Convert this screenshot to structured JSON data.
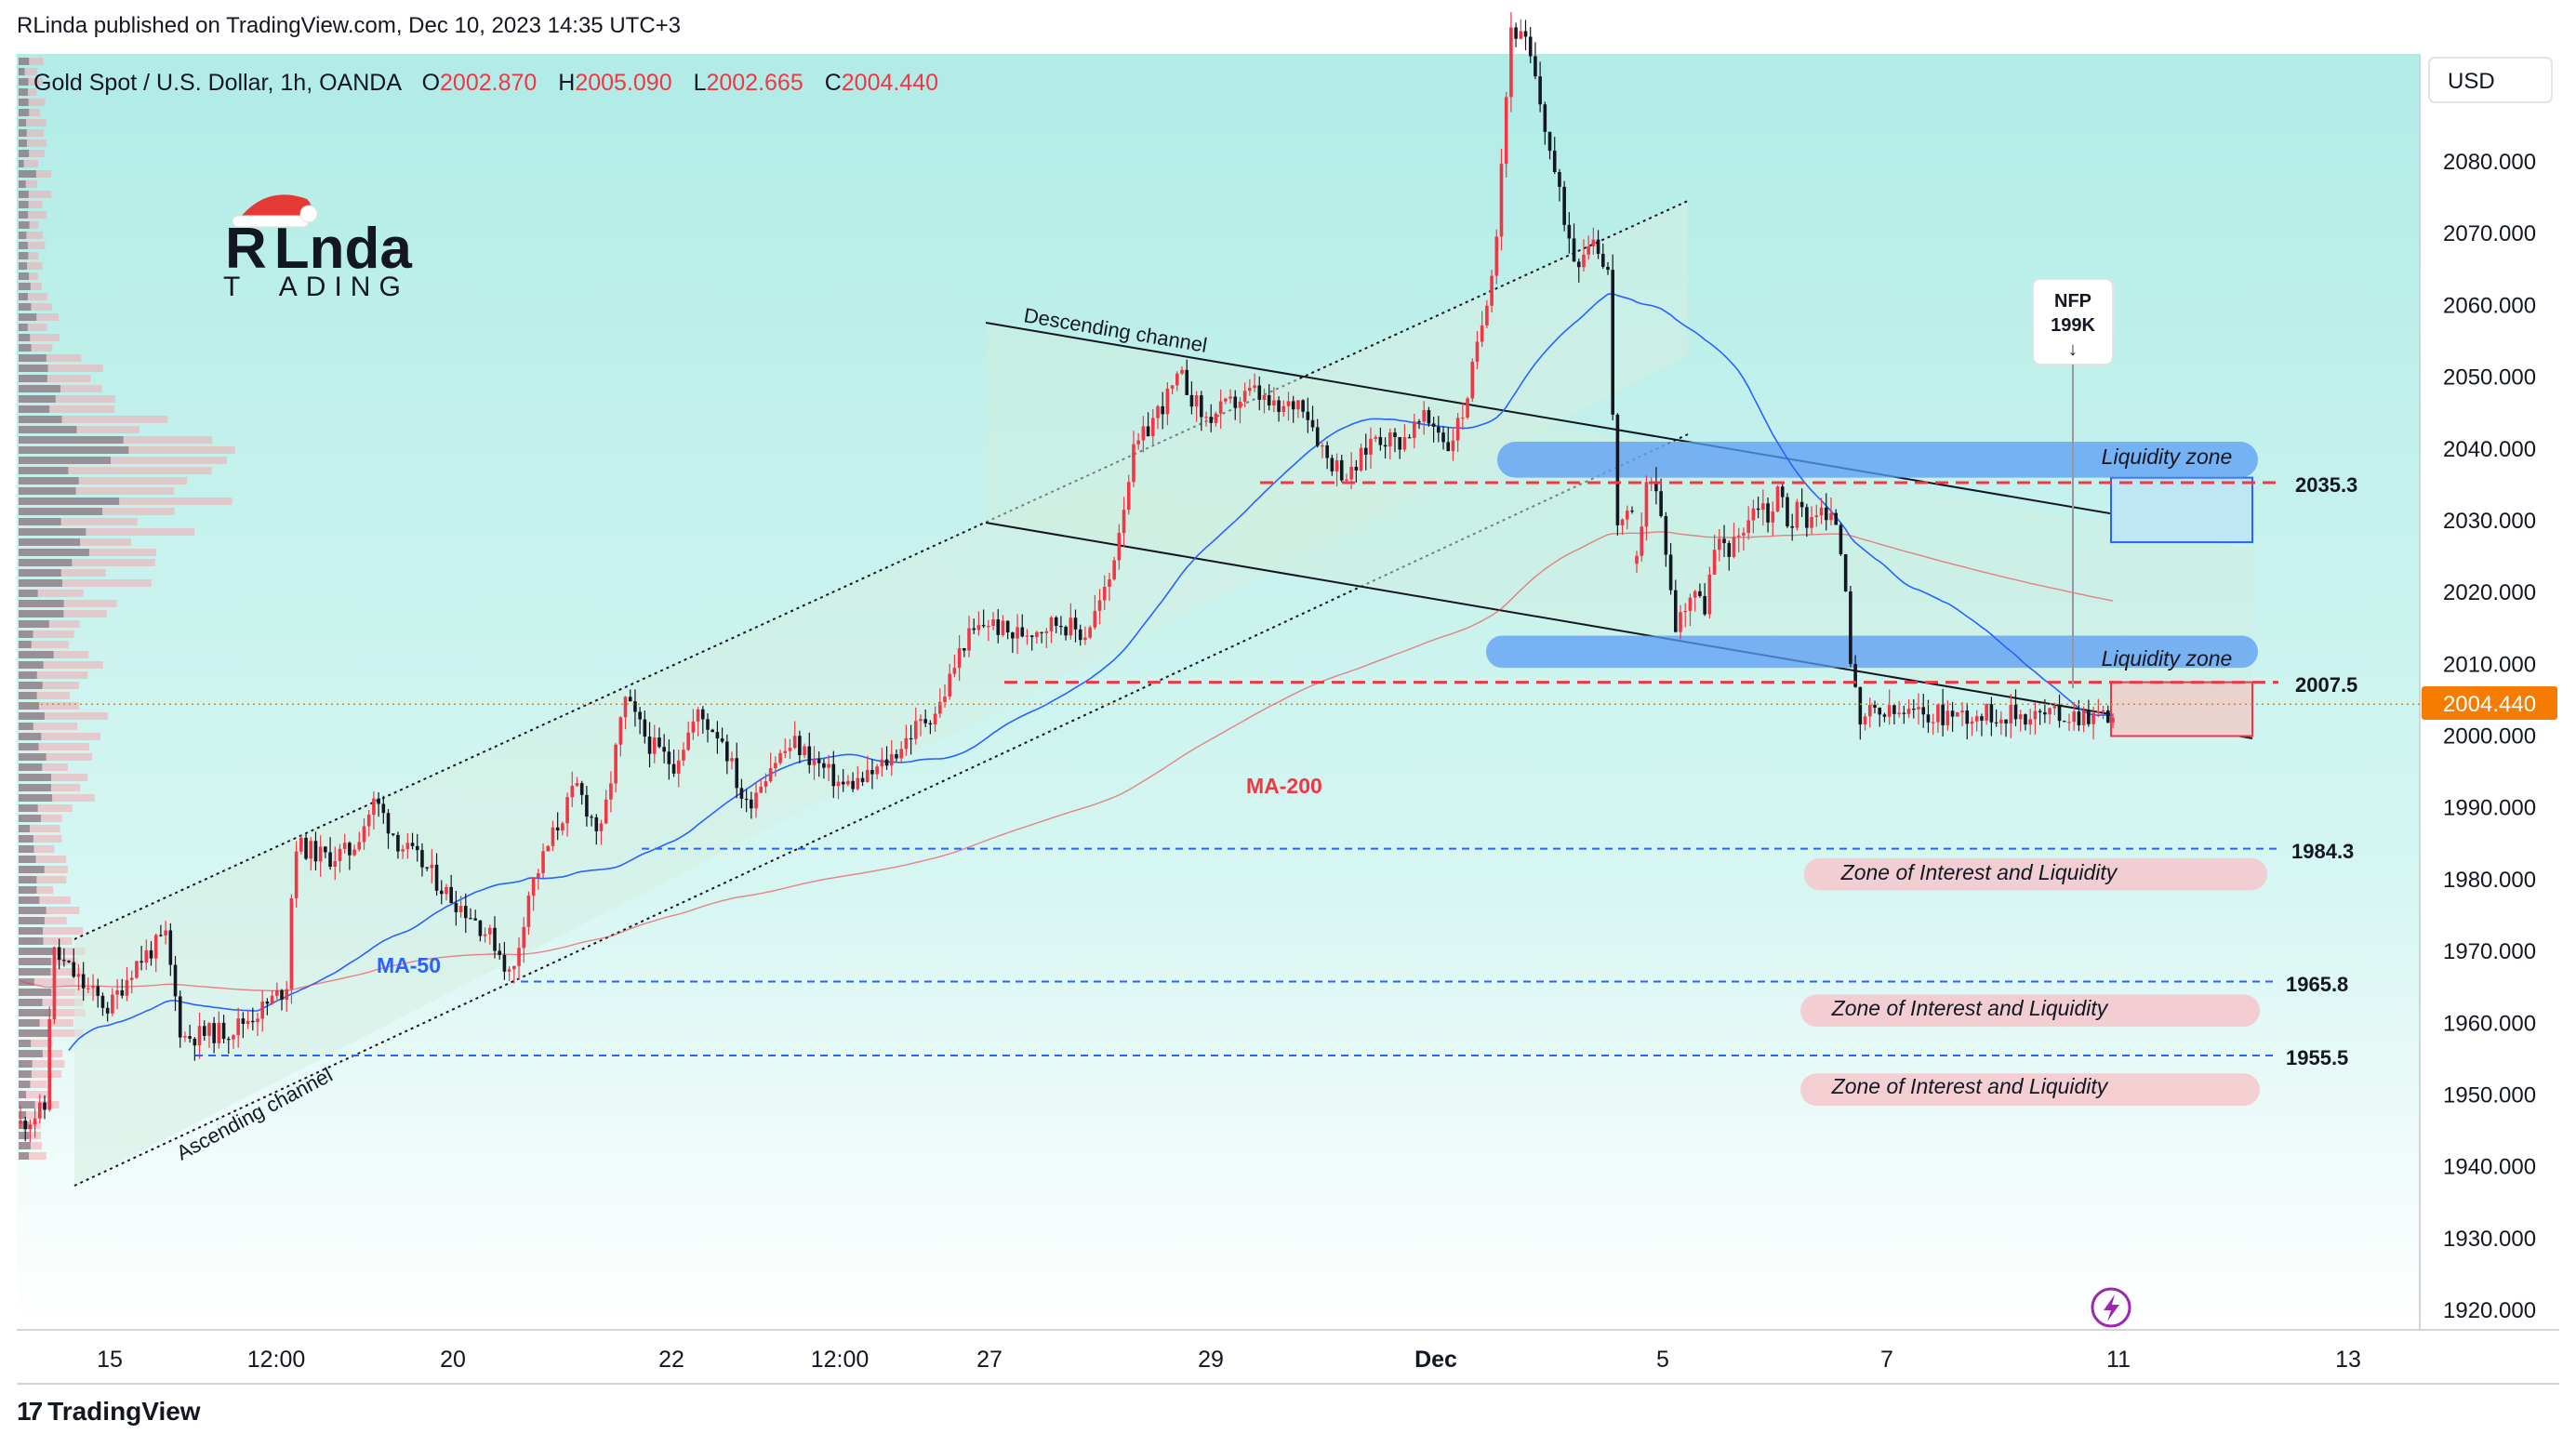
{
  "header": {
    "published": "RLinda published on TradingView.com, Dec 10, 2023 14:35 UTC+3"
  },
  "legend": {
    "symbol": "Gold Spot / U.S. Dollar, 1h, OANDA",
    "o_label": "O",
    "o_value": "2002.870",
    "h_label": "H",
    "h_value": "2005.090",
    "l_label": "L",
    "l_value": "2002.665",
    "c_label": "C",
    "c_value": "2004.440"
  },
  "logo": {
    "line1_a": "R",
    "line1_b": "L",
    "line1_c": "nda",
    "line2": "T  ADING"
  },
  "currency_button": "USD",
  "footer": {
    "brand": "TradingView",
    "logo_glyph": "17"
  },
  "colors": {
    "bull": "#f23645",
    "bear": "#131722",
    "ma50": "#2962ff",
    "ma200": "#f23645",
    "zone_blue": "#5b9cf6",
    "zone_pink": "#f4c7cb",
    "bg_top": "#b6ede8",
    "bg_bottom": "#ffffff",
    "price_tag": "#f57c00"
  },
  "chart_data": {
    "type": "candlestick",
    "title": "Gold Spot / U.S. Dollar, 1h, OANDA",
    "interval": "1h",
    "ylim": [
      1916,
      2098
    ],
    "y_ticks": [
      "2080.000",
      "2070.000",
      "2060.000",
      "2050.000",
      "2040.000",
      "2030.000",
      "2020.000",
      "2010.000",
      "2000.000",
      "1990.000",
      "1980.000",
      "1970.000",
      "1960.000",
      "1950.000",
      "1940.000",
      "1930.000",
      "1920.000"
    ],
    "x_ticks": [
      "15",
      "12:00",
      "20",
      "22",
      "12:00",
      "27",
      "29",
      "Dec",
      "5",
      "7",
      "11",
      "13"
    ],
    "current_price": "2004.440",
    "price_path": [
      [
        0.0,
        1946
      ],
      [
        0.015,
        1948
      ],
      [
        0.02,
        1970
      ],
      [
        0.04,
        1965
      ],
      [
        0.055,
        1962
      ],
      [
        0.07,
        1968
      ],
      [
        0.09,
        1972
      ],
      [
        0.1,
        1958
      ],
      [
        0.13,
        1959
      ],
      [
        0.15,
        1962
      ],
      [
        0.165,
        1965
      ],
      [
        0.17,
        1985
      ],
      [
        0.19,
        1983
      ],
      [
        0.205,
        1984
      ],
      [
        0.22,
        1991
      ],
      [
        0.235,
        1985
      ],
      [
        0.25,
        1982
      ],
      [
        0.265,
        1978
      ],
      [
        0.28,
        1975
      ],
      [
        0.295,
        1971
      ],
      [
        0.305,
        1966
      ],
      [
        0.315,
        1978
      ],
      [
        0.33,
        1986
      ],
      [
        0.345,
        1993
      ],
      [
        0.36,
        1986
      ],
      [
        0.375,
        2005
      ],
      [
        0.39,
        1999
      ],
      [
        0.405,
        1996
      ],
      [
        0.42,
        2003
      ],
      [
        0.435,
        2000
      ],
      [
        0.45,
        1990
      ],
      [
        0.465,
        1996
      ],
      [
        0.48,
        1999
      ],
      [
        0.495,
        1996
      ],
      [
        0.51,
        1993
      ],
      [
        0.525,
        1994
      ],
      [
        0.54,
        1997
      ],
      [
        0.555,
        2001
      ],
      [
        0.57,
        2004
      ],
      [
        0.585,
        2013
      ],
      [
        0.6,
        2016
      ],
      [
        0.615,
        2014
      ],
      [
        0.63,
        2015
      ],
      [
        0.645,
        2016
      ],
      [
        0.66,
        2014
      ],
      [
        0.675,
        2021
      ],
      [
        0.69,
        2039
      ],
      [
        0.705,
        2045
      ],
      [
        0.72,
        2050
      ],
      [
        0.735,
        2044
      ],
      [
        0.75,
        2046
      ],
      [
        0.765,
        2048
      ],
      [
        0.78,
        2045
      ],
      [
        0.795,
        2047
      ],
      [
        0.81,
        2039
      ],
      [
        0.825,
        2036
      ],
      [
        0.84,
        2042
      ],
      [
        0.855,
        2041
      ],
      [
        0.87,
        2044
      ],
      [
        0.88,
        2043
      ],
      [
        0.885,
        2040
      ],
      [
        0.895,
        2045
      ],
      [
        0.905,
        2055
      ],
      [
        0.915,
        2068
      ],
      [
        0.925,
        2099
      ],
      [
        0.935,
        2096
      ],
      [
        0.945,
        2086
      ],
      [
        0.955,
        2075
      ],
      [
        0.965,
        2066
      ],
      [
        0.975,
        2070
      ],
      [
        0.985,
        2065
      ],
      [
        0.99,
        2030
      ]
    ],
    "price_path_2": [
      [
        0.0,
        2024
      ],
      [
        0.02,
        2036
      ],
      [
        0.04,
        2034
      ],
      [
        0.06,
        2027
      ],
      [
        0.08,
        2015
      ],
      [
        0.1,
        2018
      ],
      [
        0.12,
        2021
      ],
      [
        0.14,
        2017
      ],
      [
        0.16,
        2025
      ],
      [
        0.18,
        2027
      ],
      [
        0.2,
        2026
      ],
      [
        0.22,
        2029
      ],
      [
        0.24,
        2031
      ],
      [
        0.26,
        2033
      ],
      [
        0.28,
        2030
      ],
      [
        0.3,
        2035
      ],
      [
        0.32,
        2029
      ],
      [
        0.34,
        2032
      ],
      [
        0.36,
        2030
      ],
      [
        0.38,
        2032
      ],
      [
        0.4,
        2030
      ],
      [
        0.42,
        2030
      ],
      [
        0.44,
        2021
      ],
      [
        0.45,
        2010
      ],
      [
        0.46,
        2005
      ],
      [
        0.47,
        2000
      ],
      [
        0.48,
        2003
      ]
    ],
    "ma50_label": "MA-50",
    "ma200_label": "MA-200",
    "channels": [
      {
        "label": "Ascending channel"
      },
      {
        "label": "Descending channel"
      }
    ],
    "levels": [
      {
        "value": 2035.3,
        "label": "2035.3",
        "style": "dashed",
        "color": "#f23645"
      },
      {
        "value": 2007.5,
        "label": "2007.5",
        "style": "dashed",
        "color": "#f23645"
      },
      {
        "value": 1984.3,
        "label": "1984.3",
        "style": "dashed",
        "color": "#2962ff"
      },
      {
        "value": 1965.8,
        "label": "1965.8",
        "style": "dashed",
        "color": "#2962ff"
      },
      {
        "value": 1955.5,
        "label": "1955.5",
        "style": "dashed",
        "color": "#2962ff"
      }
    ],
    "zones": [
      {
        "label": "Liquidity zone",
        "low": 2036,
        "high": 2041
      },
      {
        "label": "Liquidity zone",
        "low": 2009.5,
        "high": 2014
      },
      {
        "label": "Zone of Interest and Liquidity",
        "low": 1978.5,
        "high": 1983
      },
      {
        "label": "Zone of Interest and Liquidity",
        "low": 1959.5,
        "high": 1964
      },
      {
        "label": "Zone of Interest and Liquidity",
        "low": 1948.5,
        "high": 1953
      }
    ],
    "annotation": {
      "line1": "NFP",
      "line2": "199K",
      "arrow": "↓"
    }
  }
}
